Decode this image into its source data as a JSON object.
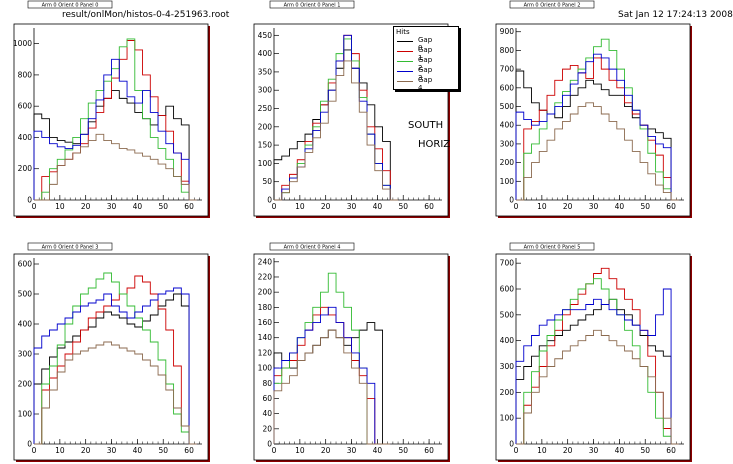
{
  "header": {
    "file_label": "result/onlMon/histos-0-4-251963.root",
    "date_label": "Sat Jan 12 17:24:13 2008"
  },
  "annotation": {
    "line1": "SOUTH",
    "line2": "HORIZ"
  },
  "legend": {
    "title": "Hits",
    "entries": [
      {
        "label": "Gap 0",
        "color": "#000000"
      },
      {
        "label": "Gap 1",
        "color": "#cc0000"
      },
      {
        "label": "Gap 2",
        "color": "#33bb33"
      },
      {
        "label": "Gap 3",
        "color": "#0000cc"
      },
      {
        "label": "Gap 4",
        "color": "#8b6a4f"
      }
    ]
  },
  "colors": {
    "frame_shadow": "#8b0000",
    "axis": "#000000"
  },
  "chart_data": [
    {
      "type": "line",
      "title": "Arm 0 Orient 0 Panel 0",
      "xlim": [
        0,
        65
      ],
      "ylim": [
        0,
        1100
      ],
      "xticks": [
        0,
        10,
        20,
        30,
        40,
        50,
        60
      ],
      "yticks": [
        0,
        200,
        400,
        600,
        800,
        1000
      ],
      "x": [
        0,
        3,
        6,
        9,
        12,
        15,
        18,
        21,
        24,
        27,
        30,
        33,
        36,
        39,
        42,
        45,
        48,
        51,
        54,
        57,
        60
      ],
      "series": [
        {
          "color": "#000000",
          "values": [
            550,
            520,
            400,
            380,
            370,
            360,
            420,
            500,
            600,
            650,
            700,
            650,
            620,
            560,
            520,
            480,
            540,
            600,
            520,
            480,
            0
          ]
        },
        {
          "color": "#cc0000",
          "values": [
            0,
            150,
            180,
            220,
            260,
            300,
            360,
            460,
            560,
            650,
            780,
            900,
            1020,
            960,
            800,
            660,
            540,
            440,
            300,
            120,
            0
          ]
        },
        {
          "color": "#33bb33",
          "values": [
            0,
            50,
            200,
            260,
            320,
            400,
            520,
            620,
            700,
            760,
            840,
            980,
            1030,
            700,
            520,
            400,
            330,
            260,
            150,
            50,
            0
          ]
        },
        {
          "color": "#0000cc",
          "values": [
            440,
            400,
            360,
            340,
            330,
            350,
            420,
            520,
            640,
            800,
            900,
            760,
            660,
            620,
            700,
            560,
            440,
            360,
            300,
            260,
            0
          ]
        },
        {
          "color": "#8b6a4f",
          "values": [
            0,
            0,
            100,
            220,
            260,
            300,
            340,
            380,
            420,
            380,
            360,
            330,
            320,
            300,
            280,
            260,
            230,
            200,
            150,
            100,
            0
          ]
        }
      ]
    },
    {
      "type": "line",
      "title": "Arm 0 Orient 0 Panel 1",
      "xlim": [
        0,
        65
      ],
      "ylim": [
        0,
        470
      ],
      "xticks": [
        0,
        10,
        20,
        30,
        40,
        50,
        60
      ],
      "yticks": [
        0,
        50,
        100,
        150,
        200,
        250,
        300,
        350,
        400,
        450
      ],
      "x": [
        0,
        3,
        6,
        9,
        12,
        15,
        18,
        21,
        24,
        27,
        30,
        33,
        36,
        39,
        42,
        45
      ],
      "series": [
        {
          "color": "#000000",
          "values": [
            110,
            120,
            140,
            160,
            180,
            220,
            260,
            300,
            360,
            410,
            360,
            320,
            260,
            200,
            160,
            0
          ]
        },
        {
          "color": "#cc0000",
          "values": [
            0,
            40,
            70,
            110,
            160,
            210,
            260,
            320,
            380,
            450,
            400,
            300,
            200,
            140,
            80,
            0
          ]
        },
        {
          "color": "#33bb33",
          "values": [
            0,
            20,
            60,
            100,
            150,
            200,
            270,
            330,
            400,
            440,
            380,
            280,
            180,
            100,
            40,
            0
          ]
        },
        {
          "color": "#0000cc",
          "values": [
            0,
            30,
            60,
            90,
            140,
            190,
            240,
            300,
            380,
            450,
            360,
            270,
            180,
            100,
            40,
            0
          ]
        },
        {
          "color": "#8b6a4f",
          "values": [
            0,
            20,
            50,
            90,
            130,
            170,
            210,
            270,
            340,
            380,
            320,
            240,
            150,
            80,
            30,
            0
          ]
        }
      ]
    },
    {
      "type": "line",
      "title": "Arm 0 Orient 0 Panel 2",
      "xlim": [
        0,
        65
      ],
      "ylim": [
        0,
        920
      ],
      "xticks": [
        0,
        10,
        20,
        30,
        40,
        50,
        60
      ],
      "yticks": [
        0,
        100,
        200,
        300,
        400,
        500,
        600,
        700,
        800,
        900
      ],
      "x": [
        0,
        3,
        6,
        9,
        12,
        15,
        18,
        21,
        24,
        27,
        30,
        33,
        36,
        39,
        42,
        45,
        48,
        51,
        54,
        57,
        60
      ],
      "series": [
        {
          "color": "#000000",
          "values": [
            690,
            600,
            520,
            480,
            460,
            440,
            500,
            560,
            600,
            640,
            620,
            590,
            560,
            560,
            500,
            440,
            400,
            380,
            360,
            330,
            0
          ]
        },
        {
          "color": "#cc0000",
          "values": [
            0,
            380,
            420,
            480,
            560,
            640,
            700,
            720,
            680,
            650,
            760,
            700,
            640,
            600,
            520,
            460,
            400,
            320,
            240,
            120,
            0
          ]
        },
        {
          "color": "#33bb33",
          "values": [
            0,
            250,
            300,
            380,
            460,
            520,
            580,
            640,
            700,
            760,
            820,
            860,
            800,
            700,
            600,
            480,
            380,
            250,
            150,
            60,
            0
          ]
        },
        {
          "color": "#0000cc",
          "values": [
            470,
            430,
            400,
            420,
            460,
            500,
            560,
            620,
            680,
            740,
            780,
            760,
            700,
            640,
            560,
            480,
            400,
            340,
            300,
            280,
            0
          ]
        },
        {
          "color": "#8b6a4f",
          "values": [
            0,
            120,
            200,
            260,
            320,
            380,
            420,
            460,
            500,
            520,
            500,
            460,
            420,
            380,
            320,
            260,
            200,
            140,
            80,
            40,
            0
          ]
        }
      ]
    },
    {
      "type": "line",
      "title": "Arm 0 Orient 0 Panel 3",
      "xlim": [
        0,
        65
      ],
      "ylim": [
        0,
        620
      ],
      "xticks": [
        0,
        10,
        20,
        30,
        40,
        50,
        60
      ],
      "yticks": [
        0,
        100,
        200,
        300,
        400,
        500,
        600
      ],
      "x": [
        0,
        3,
        6,
        9,
        12,
        15,
        18,
        21,
        24,
        27,
        30,
        33,
        36,
        39,
        42,
        45,
        48,
        51,
        54,
        57,
        60
      ],
      "series": [
        {
          "color": "#000000",
          "values": [
            200,
            250,
            290,
            320,
            340,
            360,
            380,
            390,
            420,
            440,
            430,
            420,
            400,
            390,
            410,
            430,
            460,
            480,
            500,
            460,
            0
          ]
        },
        {
          "color": "#cc0000",
          "values": [
            0,
            180,
            220,
            260,
            300,
            340,
            380,
            420,
            440,
            460,
            480,
            500,
            520,
            560,
            540,
            500,
            450,
            380,
            260,
            60,
            0
          ]
        },
        {
          "color": "#33bb33",
          "values": [
            0,
            200,
            260,
            330,
            400,
            460,
            500,
            520,
            550,
            570,
            540,
            500,
            460,
            420,
            380,
            340,
            280,
            200,
            100,
            40,
            0
          ]
        },
        {
          "color": "#0000cc",
          "values": [
            320,
            360,
            380,
            400,
            420,
            440,
            460,
            470,
            480,
            500,
            460,
            440,
            420,
            440,
            460,
            480,
            500,
            510,
            520,
            500,
            0
          ]
        },
        {
          "color": "#8b6a4f",
          "values": [
            0,
            120,
            180,
            240,
            280,
            300,
            310,
            320,
            330,
            340,
            330,
            320,
            310,
            300,
            280,
            260,
            230,
            180,
            120,
            60,
            0
          ]
        }
      ]
    },
    {
      "type": "line",
      "title": "Arm 0 Orient 0 Panel 4",
      "xlim": [
        0,
        65
      ],
      "ylim": [
        0,
        245
      ],
      "xticks": [
        0,
        10,
        20,
        30,
        40,
        50,
        60
      ],
      "yticks": [
        0,
        20,
        40,
        60,
        80,
        100,
        120,
        140,
        160,
        180,
        200,
        220,
        240
      ],
      "x": [
        0,
        3,
        6,
        9,
        12,
        15,
        18,
        21,
        24,
        27,
        30,
        33,
        36,
        39,
        42
      ],
      "series": [
        {
          "color": "#000000",
          "values": [
            120,
            110,
            100,
            110,
            120,
            130,
            140,
            150,
            140,
            130,
            140,
            150,
            160,
            150,
            0
          ]
        },
        {
          "color": "#cc0000",
          "values": [
            90,
            100,
            110,
            130,
            150,
            170,
            180,
            170,
            160,
            140,
            110,
            90,
            60,
            0,
            0
          ]
        },
        {
          "color": "#33bb33",
          "values": [
            80,
            100,
            120,
            140,
            160,
            180,
            200,
            225,
            200,
            180,
            150,
            100,
            0,
            0,
            0
          ]
        },
        {
          "color": "#0000cc",
          "values": [
            100,
            110,
            120,
            140,
            150,
            160,
            170,
            180,
            160,
            140,
            120,
            100,
            80,
            0,
            0
          ]
        },
        {
          "color": "#8b6a4f",
          "values": [
            70,
            80,
            90,
            110,
            120,
            130,
            140,
            150,
            140,
            120,
            100,
            80,
            0,
            0,
            0
          ]
        }
      ]
    },
    {
      "type": "line",
      "title": "Arm 0 Orient 0 Panel 5",
      "xlim": [
        0,
        65
      ],
      "ylim": [
        0,
        720
      ],
      "xticks": [
        0,
        10,
        20,
        30,
        40,
        50,
        60
      ],
      "yticks": [
        0,
        100,
        200,
        300,
        400,
        500,
        600,
        700
      ],
      "x": [
        0,
        3,
        6,
        9,
        12,
        15,
        18,
        21,
        24,
        27,
        30,
        33,
        36,
        39,
        42,
        45,
        48,
        51,
        54,
        57,
        60
      ],
      "series": [
        {
          "color": "#000000",
          "values": [
            250,
            300,
            340,
            380,
            400,
            420,
            440,
            460,
            480,
            500,
            520,
            540,
            560,
            520,
            500,
            460,
            420,
            380,
            360,
            340,
            0
          ]
        },
        {
          "color": "#cc0000",
          "values": [
            0,
            150,
            220,
            300,
            380,
            440,
            500,
            540,
            580,
            620,
            660,
            680,
            640,
            600,
            560,
            520,
            440,
            340,
            200,
            60,
            0
          ]
        },
        {
          "color": "#33bb33",
          "values": [
            0,
            200,
            280,
            360,
            420,
            480,
            520,
            560,
            600,
            620,
            640,
            600,
            560,
            500,
            440,
            380,
            300,
            200,
            100,
            30,
            0
          ]
        },
        {
          "color": "#0000cc",
          "values": [
            320,
            380,
            420,
            460,
            480,
            500,
            520,
            520,
            520,
            540,
            560,
            540,
            520,
            500,
            480,
            460,
            440,
            420,
            500,
            600,
            0
          ]
        },
        {
          "color": "#8b6a4f",
          "values": [
            0,
            120,
            200,
            260,
            300,
            330,
            360,
            380,
            400,
            420,
            440,
            420,
            400,
            380,
            360,
            330,
            300,
            260,
            200,
            100,
            0
          ]
        }
      ]
    }
  ]
}
